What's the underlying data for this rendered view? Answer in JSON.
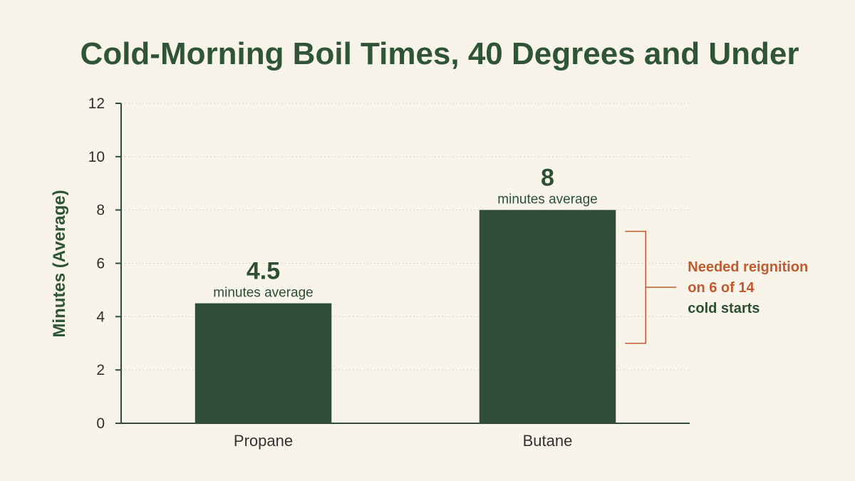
{
  "chart_data": {
    "type": "bar",
    "title": "Cold-Morning Boil Times, 40 Degrees and Under",
    "xlabel": "",
    "ylabel": "Minutes (Average)",
    "ylim": [
      0,
      12
    ],
    "yticks": [
      0,
      2,
      4,
      6,
      8,
      10,
      12
    ],
    "grid": true,
    "categories": [
      "Propane",
      "Butane"
    ],
    "values": [
      4.5,
      8
    ],
    "value_labels": [
      "4.5",
      "8"
    ],
    "value_sublabel": "minutes average",
    "annotation": {
      "target_category": "Butane",
      "lines": [
        {
          "text": "Needed reignition",
          "style": "red"
        },
        {
          "text": "on 6 of 14",
          "style": "red"
        },
        {
          "text": "cold starts",
          "style": "green"
        }
      ]
    },
    "colors": {
      "background": "#f8f4ea",
      "bar": "#2f4e37",
      "title": "#2f5437",
      "accent": "#c05a2f",
      "grid": "#d7d3c8",
      "axis": "#2f4e37"
    }
  }
}
